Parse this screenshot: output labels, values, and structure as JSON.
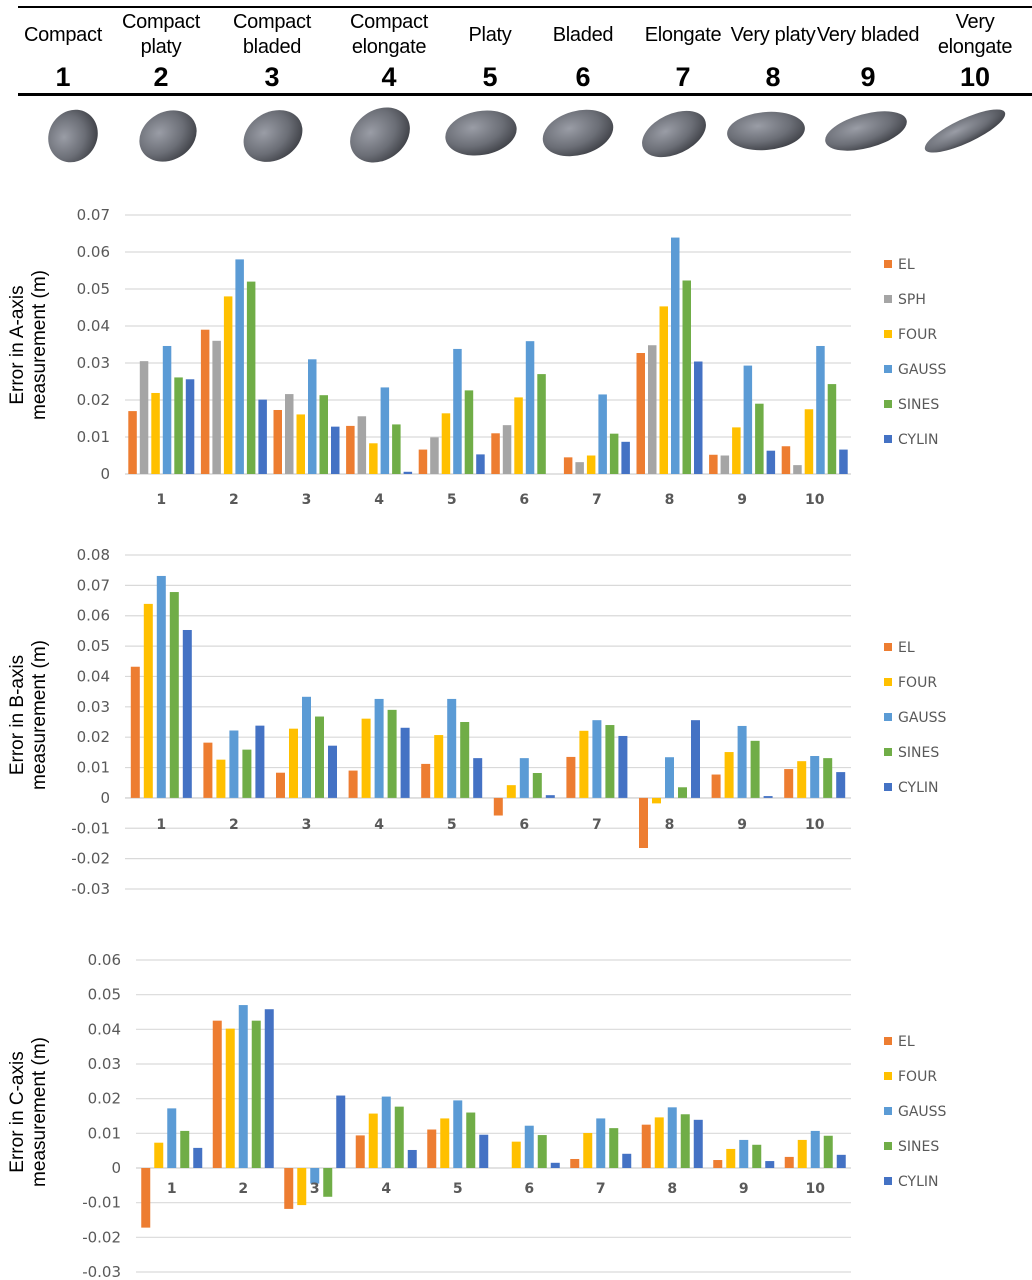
{
  "header": {
    "shapes": [
      {
        "name": "Compact",
        "num": "1"
      },
      {
        "name": "Compact platy",
        "num": "2"
      },
      {
        "name": "Compact bladed",
        "num": "3"
      },
      {
        "name": "Compact elongate",
        "num": "4"
      },
      {
        "name": "Platy",
        "num": "5"
      },
      {
        "name": "Bladed",
        "num": "6"
      },
      {
        "name": "Elongate",
        "num": "7"
      },
      {
        "name": "Very platy",
        "num": "8"
      },
      {
        "name": "Very bladed",
        "num": "9"
      },
      {
        "name": "Very elongate",
        "num": "10"
      }
    ],
    "pebble_color": "#6b6e76"
  },
  "colors": {
    "EL": "#ED7D31",
    "SPH": "#A5A5A5",
    "FOUR": "#FFC000",
    "GAUSS": "#5B9BD5",
    "SINES": "#70AD47",
    "CYLIN": "#4472C4",
    "grid": "#D9D9D9"
  },
  "chart_data": [
    {
      "type": "bar",
      "title": "",
      "ylabel": "Error in A-axis measurement (m)",
      "xlabel": "",
      "categories": [
        "1",
        "2",
        "3",
        "4",
        "5",
        "6",
        "7",
        "8",
        "9",
        "10"
      ],
      "ylim": [
        0,
        0.07
      ],
      "yticks": [
        0,
        0.01,
        0.02,
        0.03,
        0.04,
        0.05,
        0.06,
        0.07
      ],
      "ytick_labels": [
        "0",
        "0.01",
        "0.02",
        "0.03",
        "0.04",
        "0.05",
        "0.06",
        "0.07"
      ],
      "grid": true,
      "legend": "right",
      "series": [
        {
          "name": "EL",
          "values": [
            0.017,
            0.039,
            0.0173,
            0.013,
            0.0066,
            0.011,
            0.0045,
            0.0327,
            0.0052,
            0.0075
          ]
        },
        {
          "name": "SPH",
          "values": [
            0.0305,
            0.036,
            0.0216,
            0.0156,
            0.0099,
            0.0132,
            0.0032,
            0.0348,
            0.005,
            0.0024
          ]
        },
        {
          "name": "FOUR",
          "values": [
            0.0219,
            0.048,
            0.0161,
            0.0083,
            0.0164,
            0.0207,
            0.005,
            0.0453,
            0.0126,
            0.0175
          ]
        },
        {
          "name": "GAUSS",
          "values": [
            0.0346,
            0.058,
            0.031,
            0.0234,
            0.0338,
            0.0359,
            0.0215,
            0.0639,
            0.0293,
            0.0346
          ]
        },
        {
          "name": "SINES",
          "values": [
            0.0261,
            0.052,
            0.0213,
            0.0134,
            0.0226,
            0.027,
            0.0109,
            0.0523,
            0.019,
            0.0243
          ]
        },
        {
          "name": "CYLIN",
          "values": [
            0.0256,
            0.0201,
            0.0128,
            0.0006,
            0.0053,
            0.0,
            0.0087,
            0.0304,
            0.0063,
            0.0066
          ]
        }
      ]
    },
    {
      "type": "bar",
      "title": "",
      "ylabel": "Error in B-axis measurement (m)",
      "xlabel": "",
      "categories": [
        "1",
        "2",
        "3",
        "4",
        "5",
        "6",
        "7",
        "8",
        "9",
        "10"
      ],
      "ylim": [
        -0.03,
        0.08
      ],
      "yticks": [
        -0.03,
        -0.02,
        -0.01,
        0,
        0.01,
        0.02,
        0.03,
        0.04,
        0.05,
        0.06,
        0.07,
        0.08
      ],
      "ytick_labels": [
        "-0.03",
        "-0.02",
        "-0.01",
        "0",
        "0.01",
        "0.02",
        "0.03",
        "0.04",
        "0.05",
        "0.06",
        "0.07",
        "0.08"
      ],
      "grid": true,
      "legend": "right",
      "series": [
        {
          "name": "EL",
          "values": [
            0.0432,
            0.0182,
            0.0083,
            0.009,
            0.0112,
            -0.0058,
            0.0135,
            -0.0165,
            0.0077,
            0.0095
          ]
        },
        {
          "name": "FOUR",
          "values": [
            0.0639,
            0.0126,
            0.0228,
            0.0261,
            0.0207,
            0.0042,
            0.0221,
            -0.0018,
            0.0151,
            0.0121
          ]
        },
        {
          "name": "GAUSS",
          "values": [
            0.0731,
            0.0222,
            0.0333,
            0.0326,
            0.0326,
            0.0131,
            0.0256,
            0.0134,
            0.0237,
            0.0138
          ]
        },
        {
          "name": "SINES",
          "values": [
            0.0678,
            0.0159,
            0.0268,
            0.029,
            0.025,
            0.0082,
            0.024,
            0.0035,
            0.0188,
            0.0131
          ]
        },
        {
          "name": "CYLIN",
          "values": [
            0.0553,
            0.0238,
            0.0172,
            0.0231,
            0.0131,
            0.0009,
            0.0204,
            0.0256,
            0.0006,
            0.0085
          ]
        }
      ]
    },
    {
      "type": "bar",
      "title": "",
      "ylabel": "Error in C-axis measurement (m)",
      "xlabel": "",
      "categories": [
        "1",
        "2",
        "3",
        "4",
        "5",
        "6",
        "7",
        "8",
        "9",
        "10"
      ],
      "ylim": [
        -0.03,
        0.06
      ],
      "yticks": [
        -0.03,
        -0.02,
        -0.01,
        0,
        0.01,
        0.02,
        0.03,
        0.04,
        0.05,
        0.06
      ],
      "ytick_labels": [
        "-0.03",
        "-0.02",
        "-0.01",
        "0",
        "0.01",
        "0.02",
        "0.03",
        "0.04",
        "0.05",
        "0.06"
      ],
      "grid": true,
      "legend": "right",
      "series": [
        {
          "name": "EL",
          "values": [
            -0.0172,
            0.0425,
            -0.0118,
            0.0094,
            0.0111,
            0.0,
            0.0026,
            0.0125,
            0.0023,
            0.0032
          ]
        },
        {
          "name": "FOUR",
          "values": [
            0.0073,
            0.0402,
            -0.0107,
            0.0157,
            0.0143,
            0.0076,
            0.0101,
            0.0146,
            0.0055,
            0.0081
          ]
        },
        {
          "name": "GAUSS",
          "values": [
            0.0172,
            0.047,
            -0.0045,
            0.0206,
            0.0195,
            0.0122,
            0.0143,
            0.0175,
            0.0081,
            0.0107
          ]
        },
        {
          "name": "SINES",
          "values": [
            0.0107,
            0.0425,
            -0.0083,
            0.0177,
            0.016,
            0.0095,
            0.0115,
            0.0155,
            0.0067,
            0.0093
          ]
        },
        {
          "name": "CYLIN",
          "values": [
            0.0058,
            0.0458,
            0.0209,
            0.0052,
            0.0096,
            0.0015,
            0.0041,
            0.0139,
            0.002,
            0.0038
          ]
        }
      ]
    }
  ]
}
